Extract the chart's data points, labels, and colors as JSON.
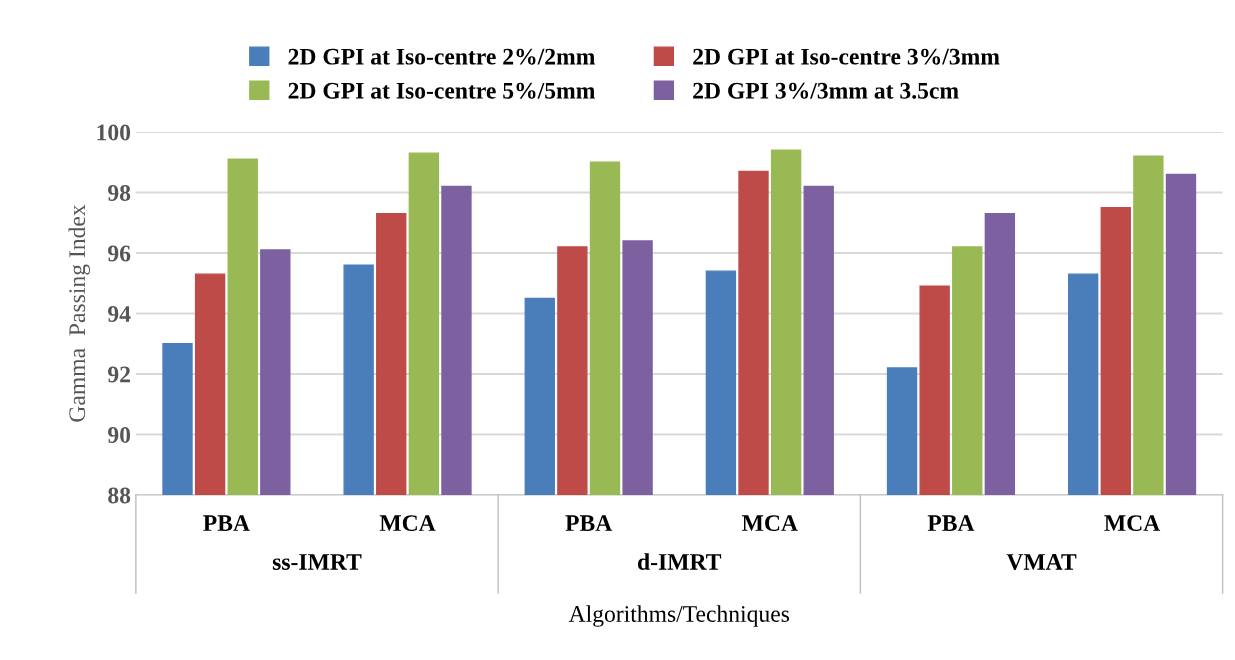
{
  "chart_data": {
    "type": "bar",
    "xlabel": "Algorithms/Techniques",
    "ylabel": "Gamma  Passing Index",
    "categories": [
      "PBA",
      "MCA",
      "PBA",
      "MCA",
      "PBA",
      "MCA"
    ],
    "series": [
      {
        "name": "2D GPI at Iso-centre 2%/2mm",
        "color": "#4a7ebb",
        "values": [
          93.0,
          95.6,
          94.5,
          95.4,
          92.2,
          95.3
        ]
      },
      {
        "name": "2D GPI at Iso-centre 3%/3mm",
        "color": "#be4b48",
        "values": [
          95.3,
          97.3,
          96.2,
          98.7,
          94.9,
          97.5
        ]
      },
      {
        "name": "2D GPI at Iso-centre 5%/5mm",
        "color": "#98b954",
        "values": [
          99.1,
          99.3,
          99.0,
          99.4,
          96.2,
          99.2
        ]
      },
      {
        "name": "2D GPI 3%/3mm at 3.5cm",
        "color": "#7d60a0",
        "values": [
          96.1,
          98.2,
          96.4,
          98.2,
          97.3,
          98.6
        ]
      }
    ],
    "annotations": [
      "ss-IMRT",
      "d-IMRT",
      "VMAT"
    ],
    "ylim": [
      88,
      100
    ],
    "yticks": [
      88,
      90,
      92,
      94,
      96,
      98,
      100
    ],
    "grid": "y",
    "legend": "top"
  }
}
